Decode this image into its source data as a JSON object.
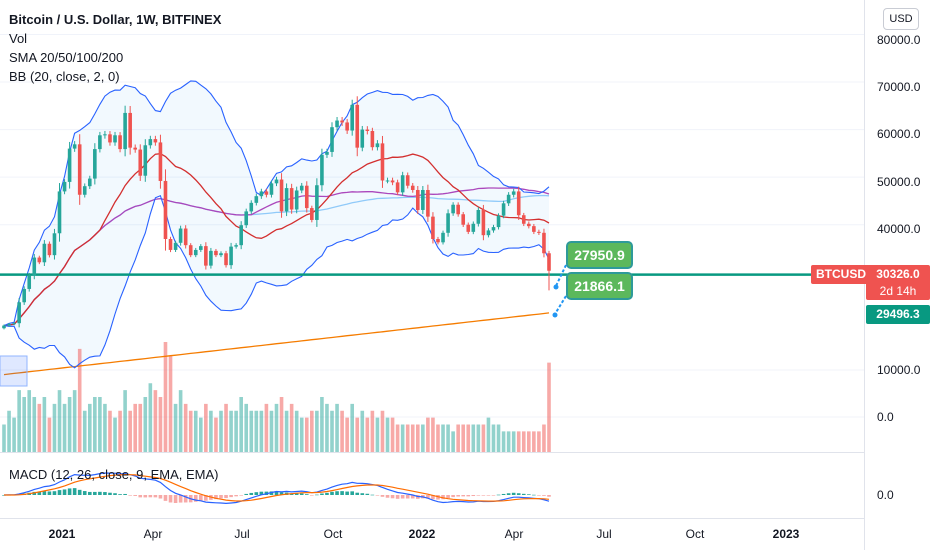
{
  "legend": {
    "title": "Bitcoin / U.S. Dollar, 1W, BITFINEX",
    "vol": "Vol",
    "sma": "SMA 20/50/100/200",
    "bb": "BB (20, close, 2, 0)",
    "macd": "MACD (12, 26, close, 9, EMA, EMA)"
  },
  "toolbar": {
    "currency": "USD"
  },
  "price_scale": {
    "labels": [
      "80000.0",
      "70000.0",
      "60000.0",
      "50000.0",
      "40000.0",
      "10000.0",
      "0.0"
    ],
    "macd_label": "0.0"
  },
  "time_axis": [
    "2021",
    "Apr",
    "Jul",
    "Oct",
    "2022",
    "Apr",
    "Jul",
    "Oct",
    "2023"
  ],
  "symbol": "BTCUSD",
  "last_price": "30326.0",
  "countdown": "2d 14h",
  "second_price": "29496.3",
  "callouts": {
    "upper": "27950.9",
    "lower": "21866.1"
  },
  "colors": {
    "up": "#26a69a",
    "down": "#ef5350",
    "bb_band": "#2962ff",
    "sma20": "#d32f2f",
    "sma50": "#ab47bc",
    "sma100": "#90caf9",
    "sma200": "#f57c00",
    "hline": "#089981",
    "callout": "#5cb85c"
  },
  "chart_data": {
    "type": "candlestick",
    "title": "Bitcoin / U.S. Dollar, 1W, BITFINEX",
    "y_ticks": [
      80000,
      70000,
      60000,
      50000,
      40000
    ],
    "horizontal_line": 29496.3,
    "weekly_close": [
      18800,
      19100,
      19300,
      23700,
      26500,
      29300,
      33100,
      32100,
      36000,
      33600,
      38200,
      47000,
      49000,
      56000,
      56900,
      46300,
      48100,
      49700,
      55900,
      58800,
      59000,
      57300,
      58800,
      55900,
      63500,
      56200,
      55800,
      50300,
      56700,
      58000,
      57300,
      49200,
      37000,
      34700,
      36200,
      39200,
      35700,
      33600,
      34700,
      35500,
      31400,
      34500,
      33600,
      34000,
      31500,
      35400,
      35700,
      39900,
      42800,
      44600,
      46000,
      47000,
      46300,
      48700,
      49500,
      42800,
      47700,
      43200,
      47200,
      48200,
      43500,
      41000,
      48300,
      54700,
      55300,
      60500,
      61900,
      61500,
      59800,
      65200,
      56200,
      60000,
      59700,
      56300,
      57100,
      49300,
      49300,
      48900,
      46800,
      50400,
      48200,
      47300,
      43100,
      47300,
      41700,
      37000,
      36300,
      38300,
      42400,
      44200,
      42200,
      40000,
      38500,
      40200,
      43100,
      37800,
      38800,
      39500,
      41900,
      44500,
      46300,
      47000,
      42000,
      40200,
      39700,
      38500,
      38300,
      34000,
      30326
    ],
    "volume_relative": [
      4,
      6,
      5,
      9,
      8,
      9,
      8,
      7,
      8,
      5,
      7,
      9,
      7,
      8,
      9,
      15,
      6,
      7,
      8,
      8,
      7,
      6,
      5,
      6,
      9,
      6,
      7,
      7,
      8,
      10,
      9,
      8,
      16,
      14,
      7,
      9,
      7,
      6,
      6,
      5,
      7,
      6,
      5,
      6,
      7,
      6,
      6,
      8,
      7,
      6,
      6,
      6,
      7,
      6,
      7,
      8,
      6,
      7,
      6,
      5,
      5,
      6,
      6,
      8,
      7,
      6,
      7,
      6,
      5,
      7,
      5,
      6,
      5,
      6,
      5,
      6,
      5,
      5,
      4,
      4,
      4,
      4,
      4,
      4,
      5,
      5,
      4,
      4,
      4,
      3,
      4,
      4,
      4,
      4,
      4,
      4,
      5,
      4,
      4,
      3,
      3,
      3,
      3,
      3,
      3,
      3,
      3,
      4,
      13
    ]
  }
}
